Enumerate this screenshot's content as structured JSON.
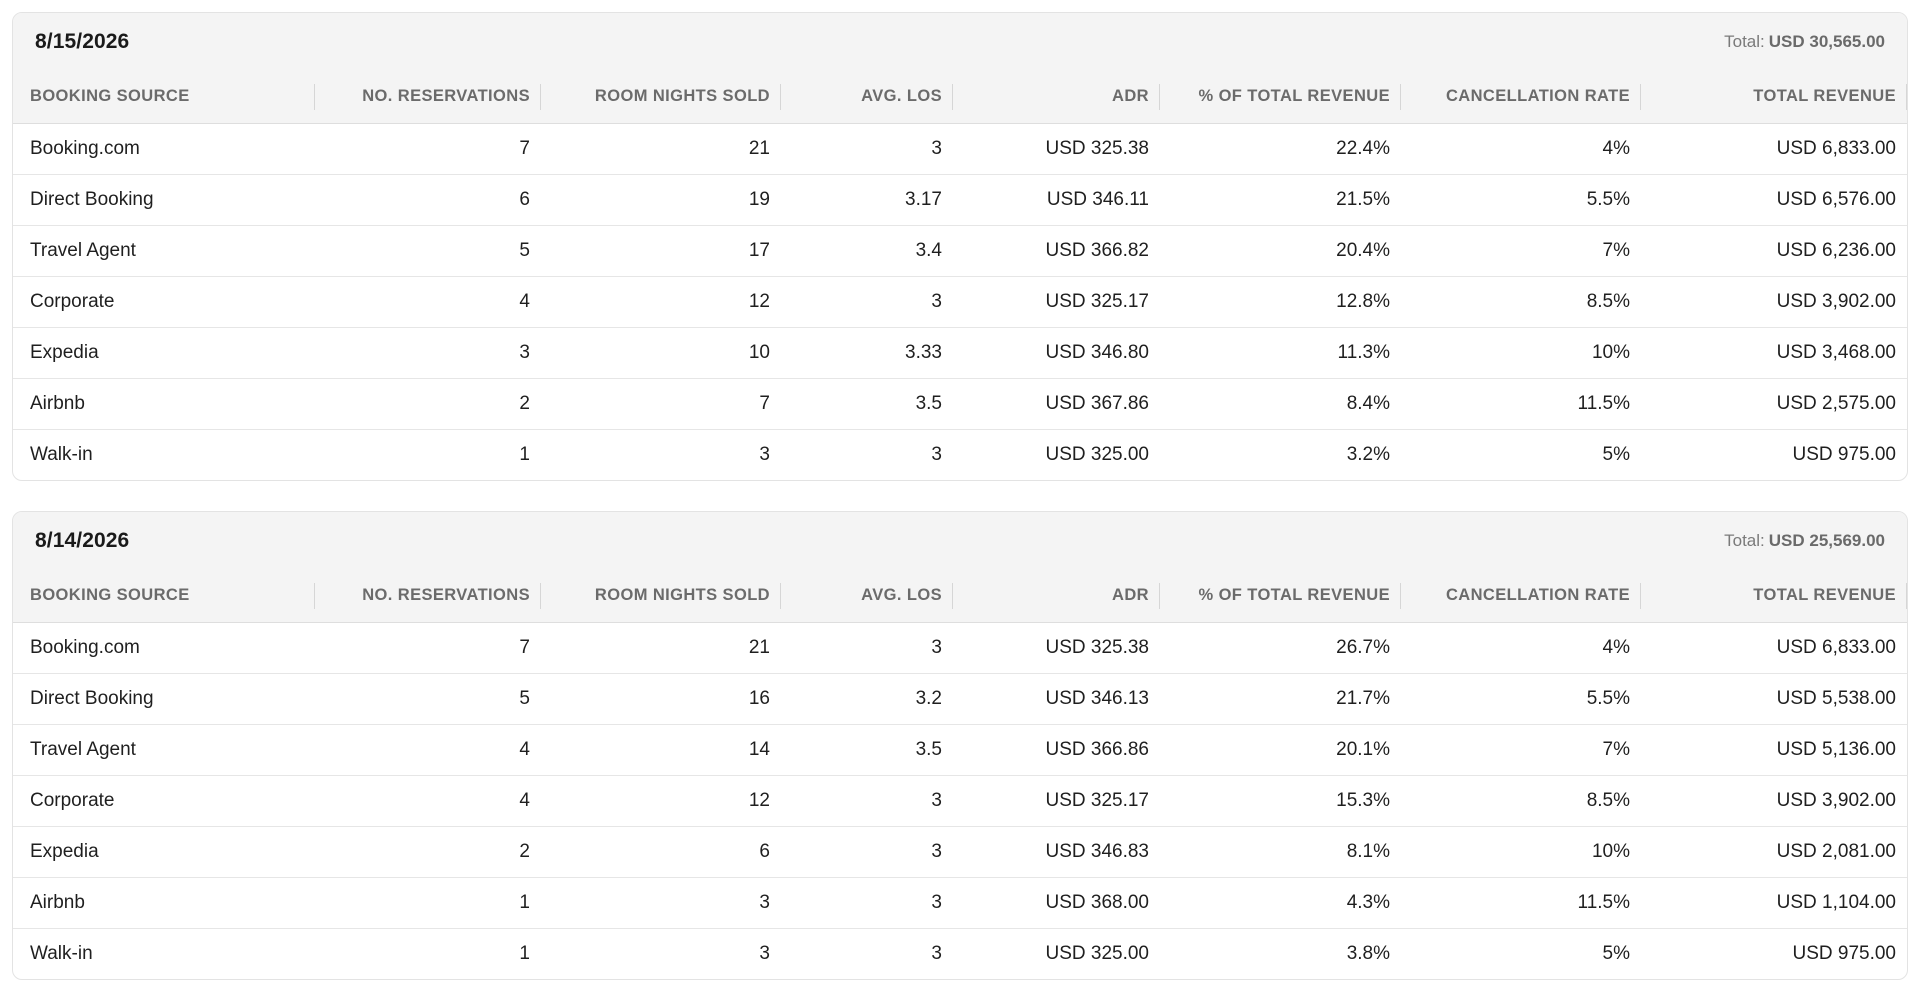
{
  "columns": [
    "BOOKING SOURCE",
    "NO. RESERVATIONS",
    "ROOM NIGHTS SOLD",
    "AVG. LOS",
    "ADR",
    "% OF TOTAL REVENUE",
    "CANCELLATION RATE",
    "TOTAL REVENUE"
  ],
  "total_label": "Total:",
  "groups": [
    {
      "date": "8/15/2026",
      "total": "USD 30,565.00",
      "rows": [
        [
          "Booking.com",
          "7",
          "21",
          "3",
          "USD 325.38",
          "22.4%",
          "4%",
          "USD 6,833.00"
        ],
        [
          "Direct Booking",
          "6",
          "19",
          "3.17",
          "USD 346.11",
          "21.5%",
          "5.5%",
          "USD 6,576.00"
        ],
        [
          "Travel Agent",
          "5",
          "17",
          "3.4",
          "USD 366.82",
          "20.4%",
          "7%",
          "USD 6,236.00"
        ],
        [
          "Corporate",
          "4",
          "12",
          "3",
          "USD 325.17",
          "12.8%",
          "8.5%",
          "USD 3,902.00"
        ],
        [
          "Expedia",
          "3",
          "10",
          "3.33",
          "USD 346.80",
          "11.3%",
          "10%",
          "USD 3,468.00"
        ],
        [
          "Airbnb",
          "2",
          "7",
          "3.5",
          "USD 367.86",
          "8.4%",
          "11.5%",
          "USD 2,575.00"
        ],
        [
          "Walk-in",
          "1",
          "3",
          "3",
          "USD 325.00",
          "3.2%",
          "5%",
          "USD 975.00"
        ]
      ]
    },
    {
      "date": "8/14/2026",
      "total": "USD 25,569.00",
      "rows": [
        [
          "Booking.com",
          "7",
          "21",
          "3",
          "USD 325.38",
          "26.7%",
          "4%",
          "USD 6,833.00"
        ],
        [
          "Direct Booking",
          "5",
          "16",
          "3.2",
          "USD 346.13",
          "21.7%",
          "5.5%",
          "USD 5,538.00"
        ],
        [
          "Travel Agent",
          "4",
          "14",
          "3.5",
          "USD 366.86",
          "20.1%",
          "7%",
          "USD 5,136.00"
        ],
        [
          "Corporate",
          "4",
          "12",
          "3",
          "USD 325.17",
          "15.3%",
          "8.5%",
          "USD 3,902.00"
        ],
        [
          "Expedia",
          "2",
          "6",
          "3",
          "USD 346.83",
          "8.1%",
          "10%",
          "USD 2,081.00"
        ],
        [
          "Airbnb",
          "1",
          "3",
          "3",
          "USD 368.00",
          "4.3%",
          "11.5%",
          "USD 1,104.00"
        ],
        [
          "Walk-in",
          "1",
          "3",
          "3",
          "USD 325.00",
          "3.8%",
          "5%",
          "USD 975.00"
        ]
      ]
    }
  ]
}
